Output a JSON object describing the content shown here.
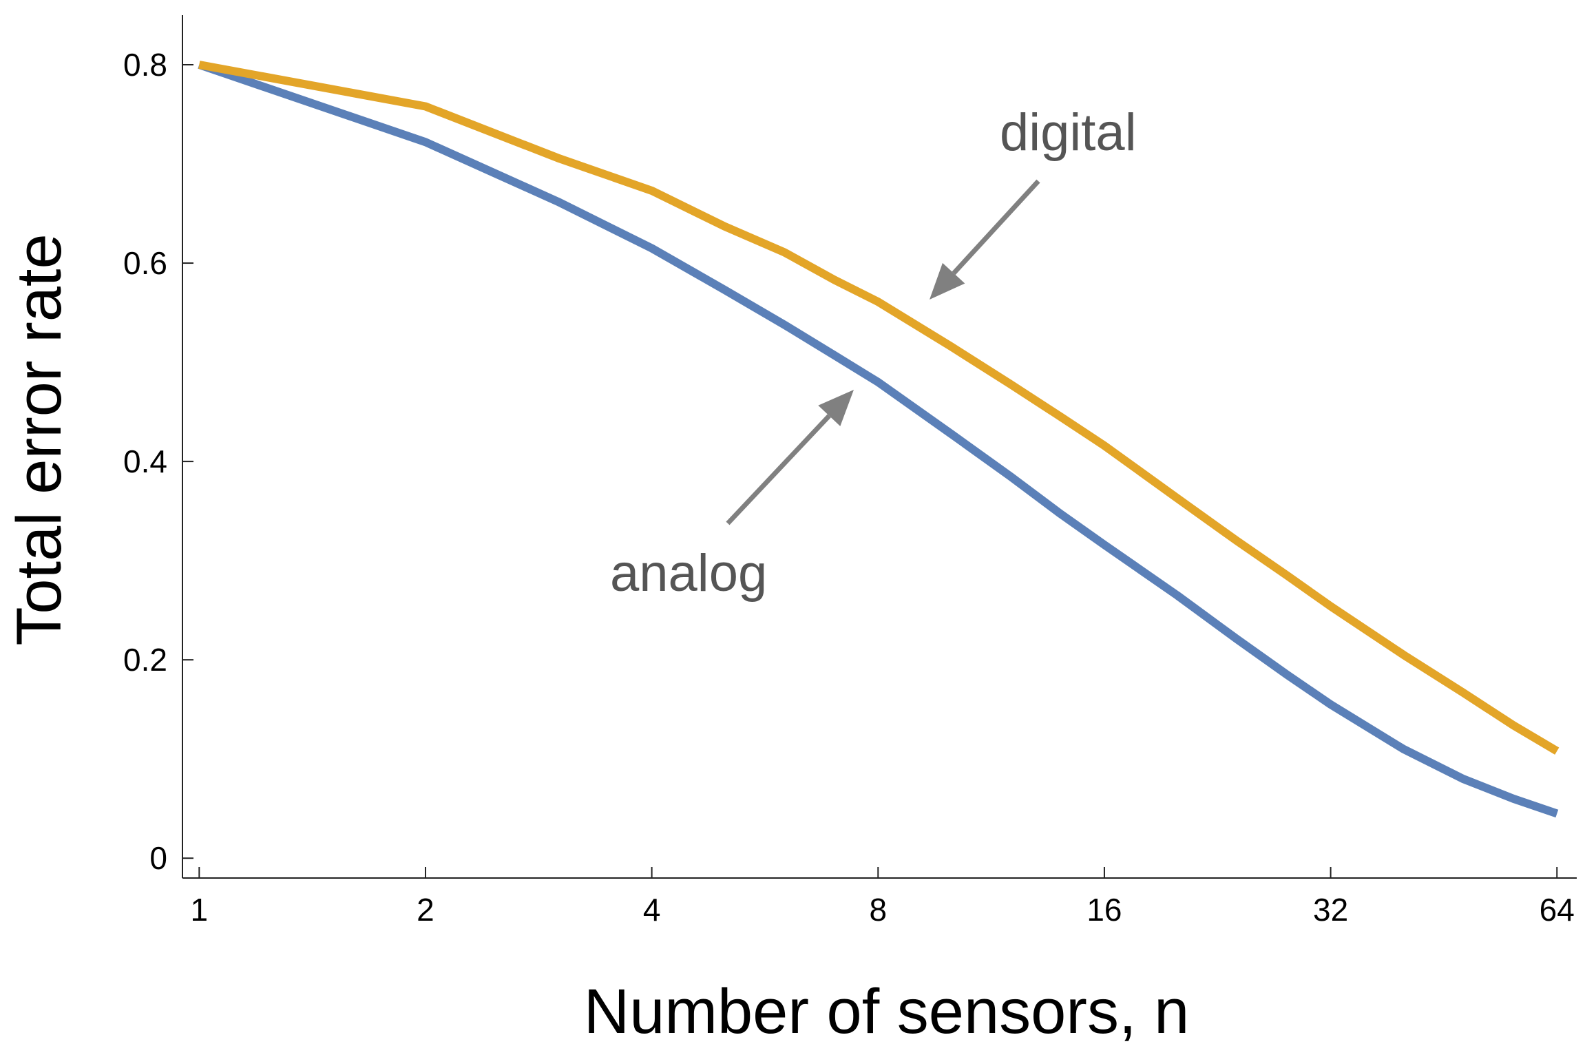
{
  "chart_data": {
    "type": "line",
    "xlabel": "Number of sensors, n",
    "ylabel": "Total error rate",
    "xscale": "log2",
    "xlim": [
      0.95,
      68
    ],
    "ylim": [
      -0.02,
      0.85
    ],
    "xticks": [
      1,
      2,
      4,
      8,
      16,
      32,
      64
    ],
    "xtick_labels": [
      "1",
      "2",
      "4",
      "8",
      "16",
      "32",
      "64"
    ],
    "yticks": [
      0,
      0.2,
      0.4,
      0.6,
      0.8
    ],
    "ytick_labels": [
      "0",
      "0.2",
      "0.4",
      "0.6",
      "0.8"
    ],
    "grid": false,
    "legend": "none",
    "series": [
      {
        "color": "#5b80b8",
        "x": [
          1,
          2,
          3,
          4,
          5,
          6,
          7,
          8,
          10,
          12,
          14,
          16,
          20,
          24,
          28,
          32,
          40,
          48,
          56,
          64
        ],
        "y": [
          0.8,
          0.722,
          0.662,
          0.615,
          0.573,
          0.538,
          0.507,
          0.48,
          0.428,
          0.385,
          0.347,
          0.316,
          0.265,
          0.221,
          0.185,
          0.155,
          0.11,
          0.08,
          0.06,
          0.045
        ]
      },
      {
        "color": "#e3a528",
        "x": [
          1,
          2,
          3,
          4,
          5,
          6,
          7,
          8,
          10,
          12,
          14,
          16,
          20,
          24,
          28,
          32,
          40,
          48,
          56,
          64
        ],
        "y": [
          0.8,
          0.758,
          0.706,
          0.673,
          0.637,
          0.611,
          0.583,
          0.561,
          0.516,
          0.478,
          0.445,
          0.416,
          0.363,
          0.32,
          0.285,
          0.254,
          0.205,
          0.167,
          0.134,
          0.108
        ]
      }
    ],
    "annotations": [
      {
        "text": "digital",
        "points_to_x": 9.2,
        "points_to_y": 0.56
      },
      {
        "text": "analog",
        "points_to_x": 7.8,
        "points_to_y": 0.47
      }
    ]
  }
}
